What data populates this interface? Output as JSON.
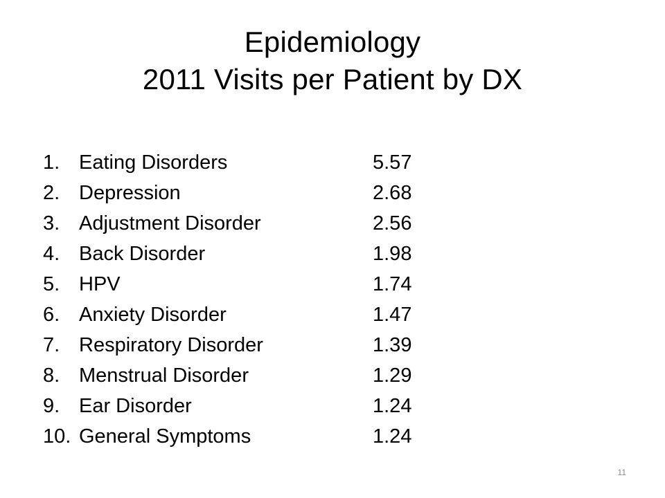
{
  "slide": {
    "title_line1": "Epidemiology",
    "title_line2": "2011 Visits per Patient by DX",
    "items": [
      {
        "num": "1.",
        "name": "Eating Disorders",
        "value": "5.57"
      },
      {
        "num": "2.",
        "name": "Depression",
        "value": "2.68"
      },
      {
        "num": "3.",
        "name": "Adjustment Disorder",
        "value": "2.56"
      },
      {
        "num": "4.",
        "name": "Back Disorder",
        "value": "1.98"
      },
      {
        "num": "5.",
        "name": "HPV",
        "value": "1.74"
      },
      {
        "num": "6.",
        "name": "Anxiety Disorder",
        "value": "1.47"
      },
      {
        "num": "7.",
        "name": "Respiratory Disorder",
        "value": "1.39"
      },
      {
        "num": "8.",
        "name": "Menstrual Disorder",
        "value": "1.29"
      },
      {
        "num": "9.",
        "name": "Ear Disorder",
        "value": "1.24"
      },
      {
        "num": "10.",
        "name": "General Symptoms",
        "value": "1.24"
      }
    ],
    "page_number": "11"
  }
}
